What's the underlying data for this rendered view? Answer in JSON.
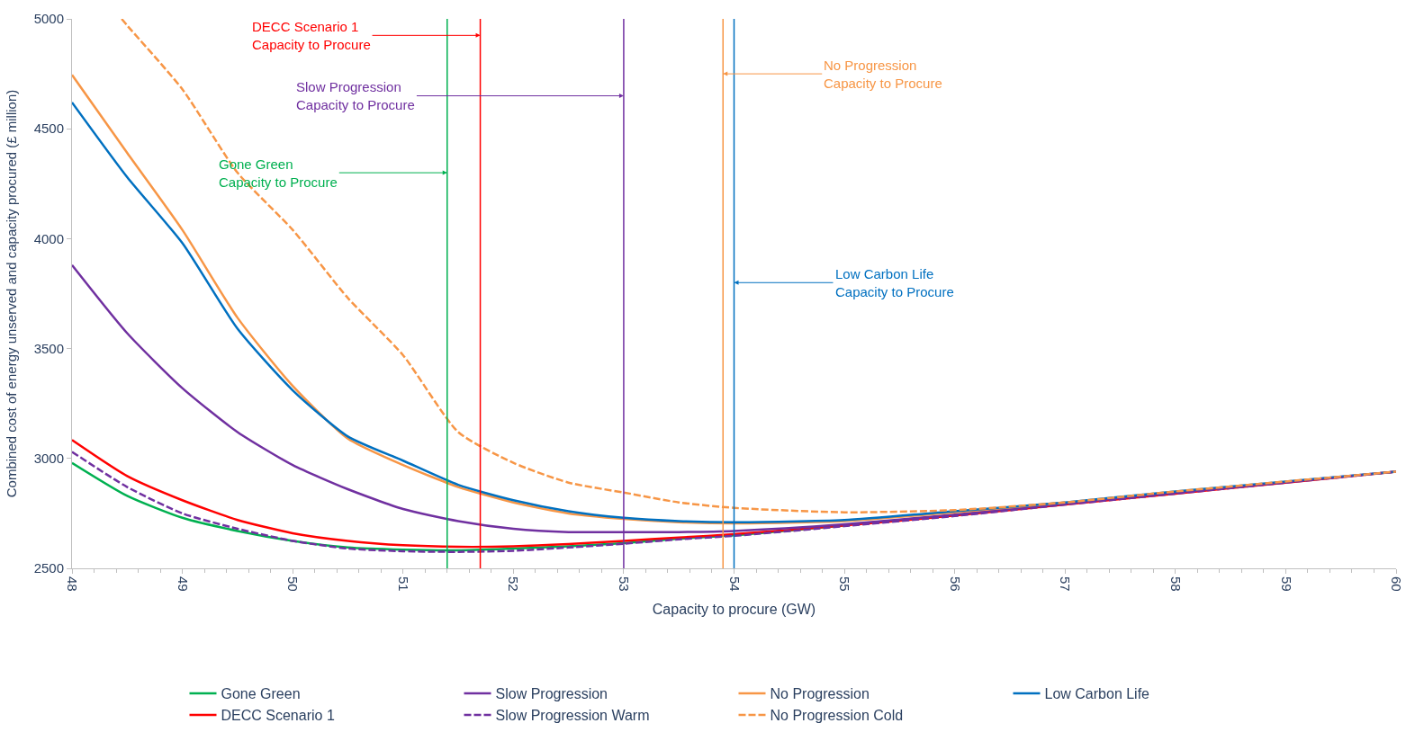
{
  "chart_data": {
    "type": "line",
    "xlabel": "Capacity to procure (GW)",
    "ylabel": "Combined cost of energy unserved and capacity procured (£ million)",
    "x": [
      48,
      48.5,
      49,
      49.5,
      50,
      50.5,
      51,
      51.5,
      52,
      52.5,
      53,
      53.5,
      54,
      55,
      56,
      57,
      58,
      59,
      60
    ],
    "xlim": [
      48,
      60
    ],
    "xticks": [
      48,
      49,
      50,
      51,
      52,
      53,
      54,
      55,
      56,
      57,
      58,
      59,
      60
    ],
    "ylim": [
      2500,
      5000
    ],
    "yticks": [
      2500,
      3000,
      3500,
      4000,
      4500,
      5000
    ],
    "legend": "bottom",
    "marker": "none",
    "series": [
      {
        "name": "Gone Green",
        "color": "#00b050",
        "line_style": "solid",
        "values": [
          2980,
          2830,
          2730,
          2670,
          2625,
          2595,
          2585,
          2582,
          2590,
          2600,
          2615,
          2635,
          2650,
          2695,
          null,
          null,
          null,
          null,
          null
        ]
      },
      {
        "name": "DECC Scenario 1",
        "color": "#ff0000",
        "line_style": "solid",
        "values": [
          3084,
          2920,
          2810,
          2720,
          2660,
          2625,
          2605,
          2598,
          2600,
          2610,
          2625,
          2640,
          2655,
          2695,
          2740,
          2790,
          2840,
          2890,
          2940
        ]
      },
      {
        "name": "Slow Progression",
        "color": "#7030a0",
        "line_style": "solid",
        "values": [
          3880,
          3570,
          3320,
          3120,
          2970,
          2860,
          2770,
          2715,
          2680,
          2665,
          2665,
          2665,
          2670,
          2700,
          2745,
          2795,
          2845,
          2893,
          2940
        ]
      },
      {
        "name": "Slow Progression Warm",
        "color": "#7030a0",
        "line_style": "dashed",
        "values": [
          3030,
          2870,
          2750,
          2680,
          2625,
          2590,
          2578,
          2575,
          2580,
          2595,
          2612,
          2632,
          2648,
          2692,
          2738,
          2790,
          2840,
          2890,
          2940
        ]
      },
      {
        "name": "No Progression",
        "color": "#f79646",
        "line_style": "solid",
        "values": [
          4745,
          4390,
          4040,
          3640,
          3330,
          3090,
          2970,
          2870,
          2800,
          2750,
          2725,
          2710,
          2705,
          2715,
          2755,
          2800,
          null,
          null,
          null
        ]
      },
      {
        "name": "No Progression Cold",
        "color": "#f79646",
        "line_style": "dashed",
        "x": [
          48.45,
          48.5,
          49,
          49.5,
          50,
          50.5,
          51,
          51.5,
          52,
          52.5,
          53,
          53.5,
          54,
          55,
          56,
          57,
          58,
          59,
          60
        ],
        "values": [
          5000,
          4970,
          4680,
          4300,
          4040,
          3730,
          3470,
          3120,
          2980,
          2890,
          2845,
          2800,
          2775,
          2755,
          2765,
          2800,
          2850,
          2895,
          2940
        ]
      },
      {
        "name": "Low Carbon Life",
        "color": "#0070c0",
        "line_style": "solid",
        "values": [
          4620,
          4280,
          3980,
          3590,
          3310,
          3100,
          2990,
          2880,
          2810,
          2760,
          2730,
          2715,
          2710,
          2720,
          2760,
          2800,
          2850,
          2895,
          2940
        ]
      }
    ],
    "ref_lines": [
      {
        "axis": "x",
        "value": 51.4,
        "label": "Gone Green\nCapacity to Procure",
        "color": "#00b050"
      },
      {
        "axis": "x",
        "value": 51.7,
        "label": "DECC Scenario 1\nCapacity to Procure",
        "color": "#ff0000"
      },
      {
        "axis": "x",
        "value": 53.0,
        "label": "Slow Progression\nCapacity to Procure",
        "color": "#7030a0"
      },
      {
        "axis": "x",
        "value": 53.9,
        "label": "No Progression\nCapacity to Procure",
        "color": "#f79646"
      },
      {
        "axis": "x",
        "value": 54.0,
        "label": "Low Carbon Life\nCapacity to Procure",
        "color": "#0070c0"
      }
    ]
  }
}
